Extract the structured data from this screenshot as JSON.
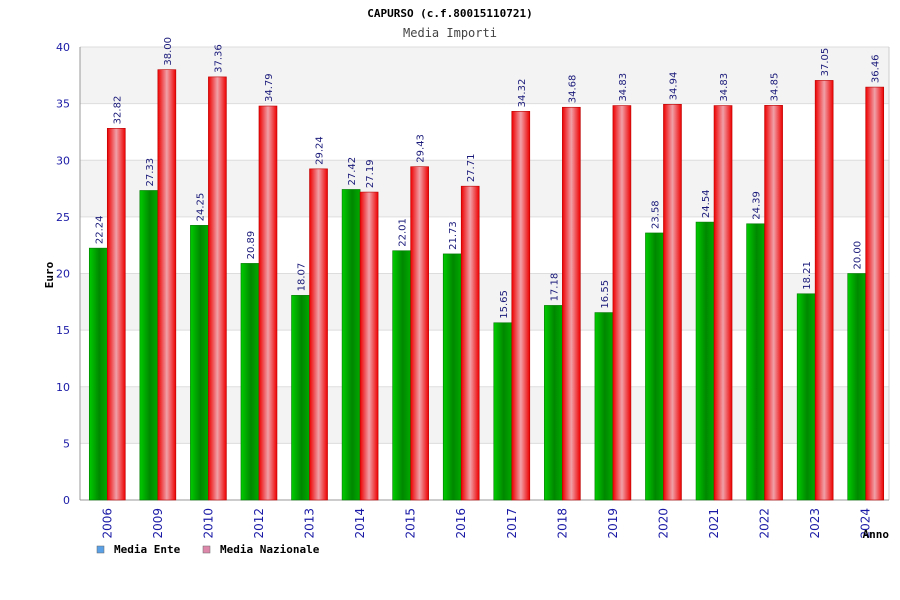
{
  "chart_data": {
    "type": "bar",
    "title": "CAPURSO (c.f.80015110721)",
    "subtitle": "Media Importi",
    "xlabel": "Anno",
    "ylabel": "Euro",
    "ylim": [
      0,
      40
    ],
    "yticks": [
      0,
      5,
      10,
      15,
      20,
      25,
      30,
      35,
      40
    ],
    "grid": true,
    "legend_position": "bottom-left",
    "categories": [
      "2006",
      "2009",
      "2010",
      "2012",
      "2013",
      "2014",
      "2015",
      "2016",
      "2017",
      "2018",
      "2019",
      "2020",
      "2021",
      "2022",
      "2023",
      "2024"
    ],
    "series": [
      {
        "name": "Media Ente",
        "color": "#00aa00",
        "legend_color": "#5aa0e6",
        "values": [
          22.24,
          27.33,
          24.25,
          20.89,
          18.07,
          27.42,
          22.01,
          21.73,
          15.65,
          17.18,
          16.55,
          23.58,
          24.54,
          24.39,
          18.21,
          20.0
        ],
        "labels": [
          "22.24",
          "27.33",
          "24.25",
          "20.89",
          "18.07",
          "27.42",
          "22.01",
          "21.73",
          "15.65",
          "17.18",
          "16.55",
          "23.58",
          "24.54",
          "24.39",
          "18.21",
          "20.00"
        ]
      },
      {
        "name": "Media Nazionale",
        "color": "#ee1111",
        "legend_color": "#dd88aa",
        "values": [
          32.82,
          38.0,
          37.36,
          34.79,
          29.24,
          27.19,
          29.43,
          27.71,
          34.32,
          34.68,
          34.83,
          34.94,
          34.83,
          34.85,
          37.05,
          36.46
        ],
        "labels": [
          "32.82",
          "38.00",
          "37.36",
          "34.79",
          "29.24",
          "27.19",
          "29.43",
          "27.71",
          "34.32",
          "34.68",
          "34.83",
          "34.94",
          "34.83",
          "34.85",
          "37.05",
          "36.46"
        ]
      }
    ]
  }
}
